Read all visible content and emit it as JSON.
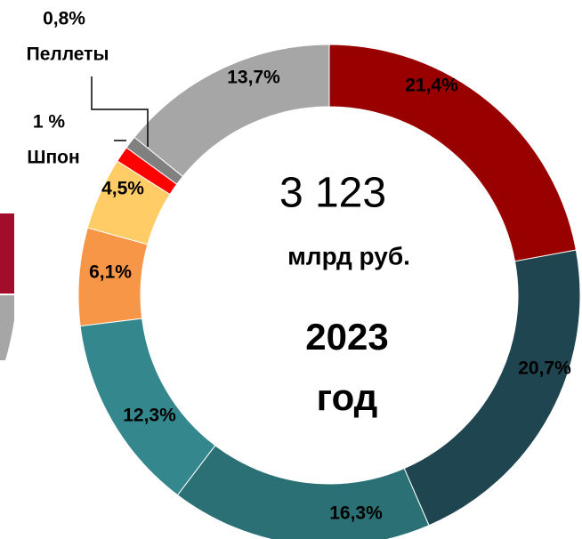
{
  "chart_data": {
    "type": "donut",
    "categories": [
      null,
      null,
      null,
      null,
      null,
      null,
      "Шпон",
      "Пеллеты",
      null
    ],
    "values": [
      21.4,
      20.7,
      16.3,
      12.3,
      6.1,
      4.5,
      1,
      0.8,
      13.7
    ],
    "value_labels": [
      "21,4%",
      "20,7%",
      "16,3%",
      "12,3%",
      "6,1%",
      "4,5%",
      "1 %",
      "0,8%",
      "13,7%"
    ],
    "colors": [
      "#990000",
      "#1f4550",
      "#2a7074",
      "#34878c",
      "#f79646",
      "#ffcc66",
      "#ff0000",
      "#808080",
      "#a6a6a6"
    ],
    "label_colors": [
      "#a6a6a6",
      "#000000",
      "#000000",
      "#000000",
      "#000000",
      "#000000",
      "#000000",
      "#000000",
      "#000000"
    ],
    "center_text": [
      "3 123",
      "млрд руб.",
      "2023",
      "год"
    ]
  }
}
